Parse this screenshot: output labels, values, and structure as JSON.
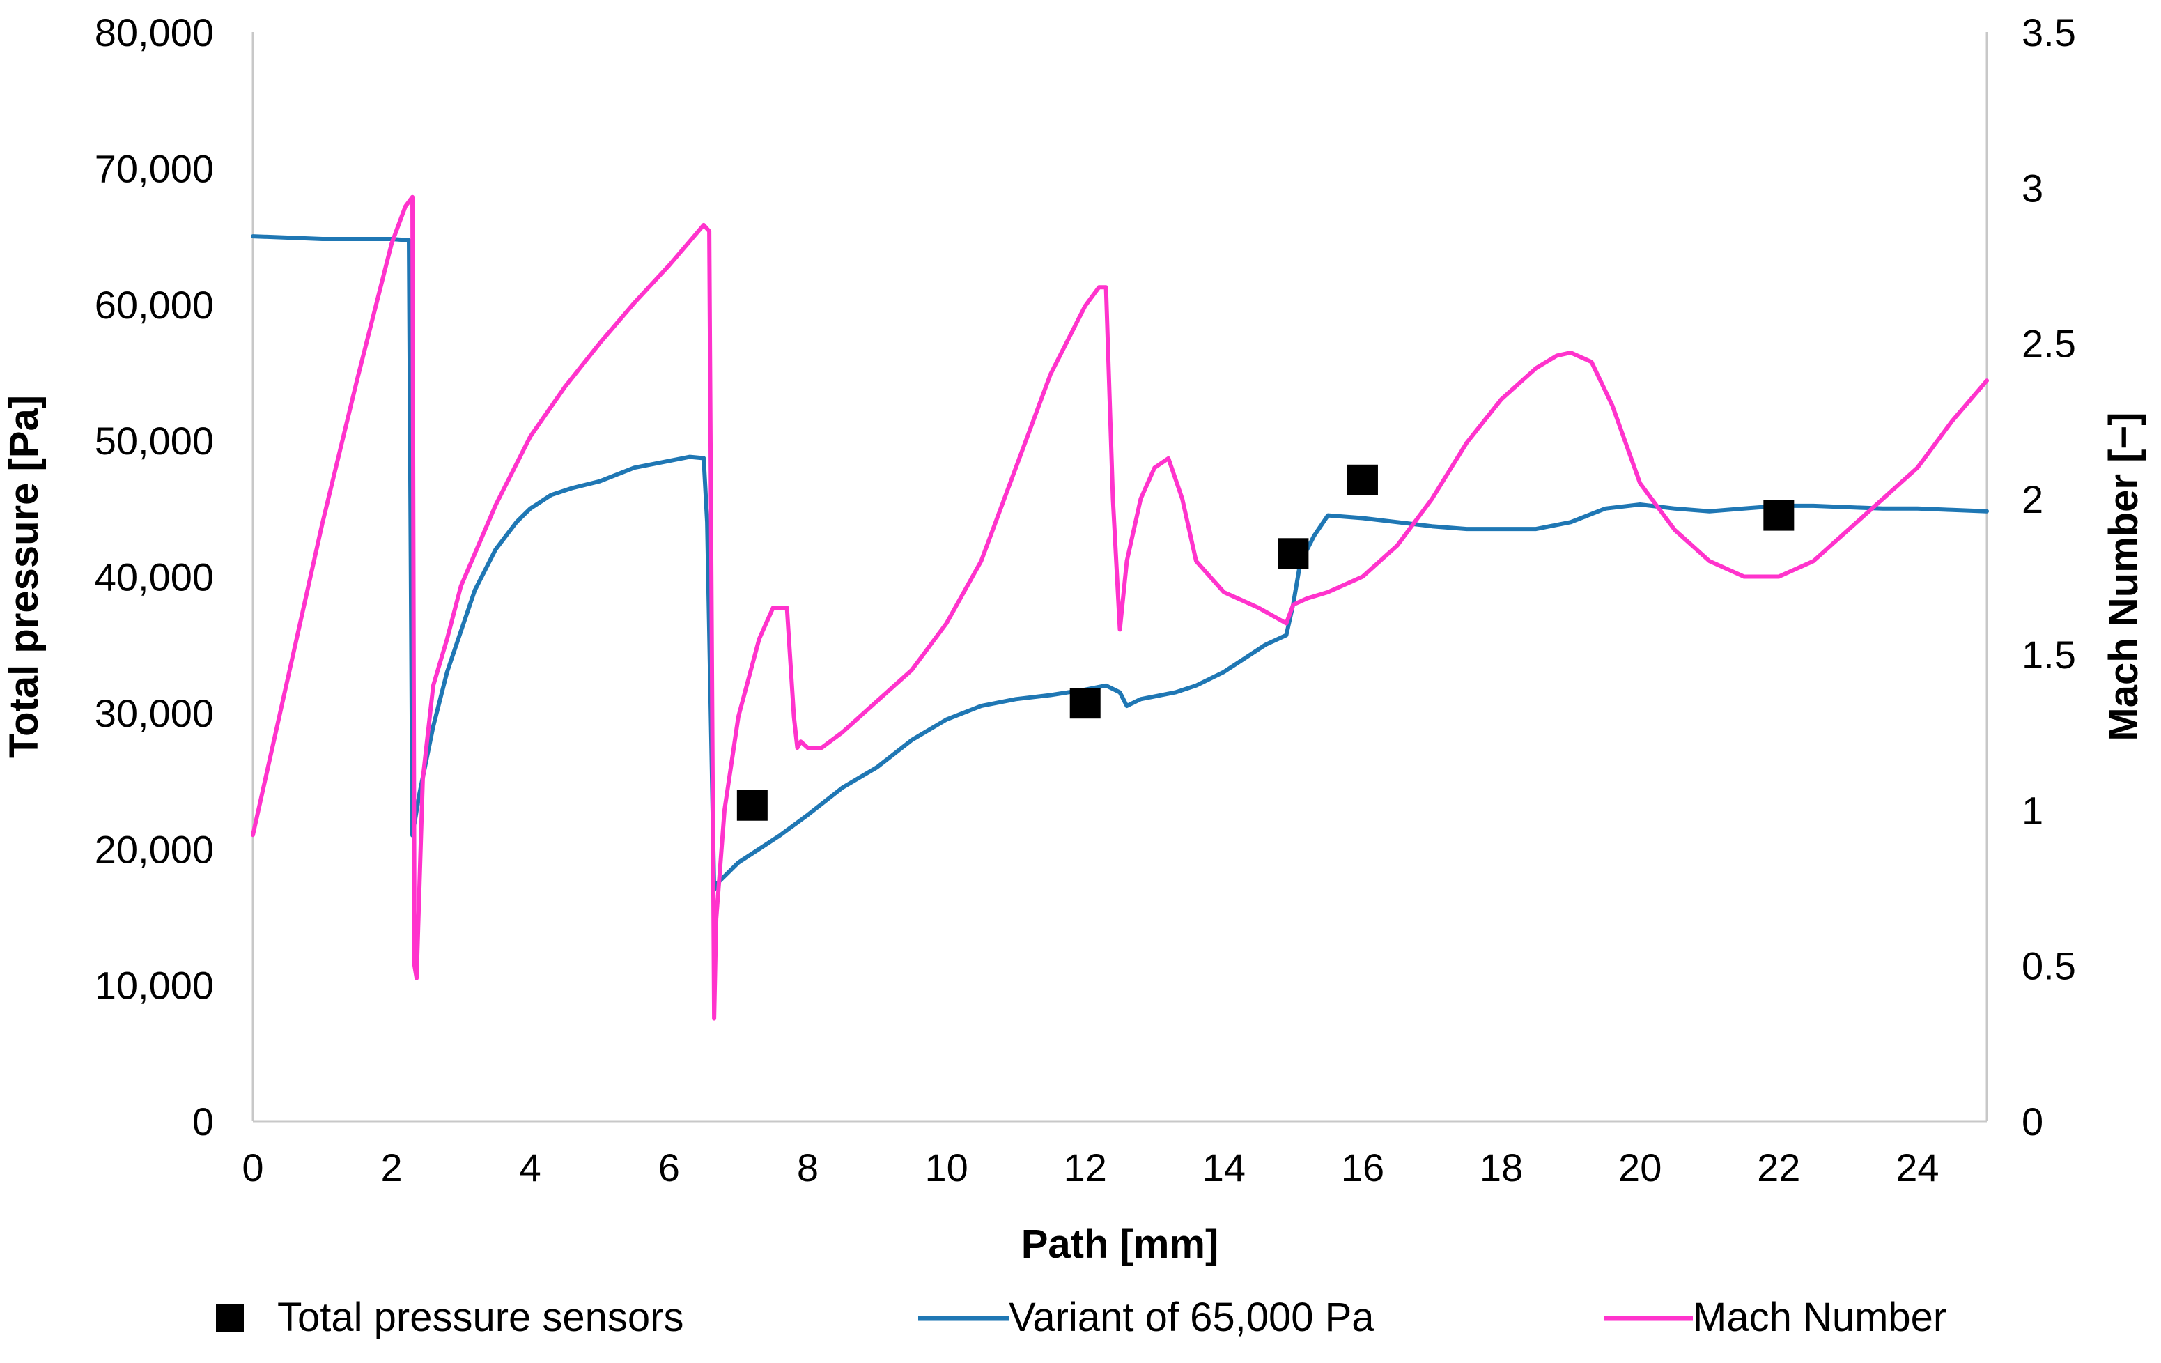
{
  "chart_data": {
    "type": "line",
    "title": "",
    "xlabel": "Path [mm]",
    "ylabel": "Total pressure [Pa]",
    "y2label": "Mach Number [−]",
    "xlim": [
      0,
      25
    ],
    "ylim": [
      0,
      80000
    ],
    "y2lim": [
      0,
      3.5
    ],
    "grid": false,
    "legend_position": "bottom",
    "x_ticks": [
      "0",
      "2",
      "4",
      "6",
      "8",
      "10",
      "12",
      "14",
      "16",
      "18",
      "20",
      "22",
      "24"
    ],
    "y_ticks": [
      "0",
      "10,000",
      "20,000",
      "30,000",
      "40,000",
      "50,000",
      "60,000",
      "70,000",
      "80,000"
    ],
    "y2_ticks": [
      "0",
      "0.5",
      "1",
      "1.5",
      "2",
      "2.5",
      "3",
      "3.5"
    ],
    "series": [
      {
        "name": "Total pressure sensors",
        "kind": "markers",
        "axis": "left",
        "color": "#000000",
        "x": [
          7.2,
          12.0,
          15.0,
          16.0,
          22.0
        ],
        "y": [
          23200,
          30700,
          41700,
          47100,
          44500
        ]
      },
      {
        "name": "Variant of 65,000 Pa",
        "kind": "line",
        "axis": "left",
        "color": "#1f77b4",
        "x": [
          0,
          0.5,
          1.0,
          1.5,
          2.0,
          2.25,
          2.3,
          2.4,
          2.6,
          2.8,
          3.0,
          3.2,
          3.5,
          3.8,
          4.0,
          4.3,
          4.6,
          5.0,
          5.5,
          6.0,
          6.3,
          6.5,
          6.55,
          6.65,
          6.7,
          7.0,
          7.3,
          7.6,
          8.0,
          8.5,
          9.0,
          9.5,
          10.0,
          10.5,
          11.0,
          11.5,
          12.0,
          12.3,
          12.5,
          12.6,
          12.8,
          13.0,
          13.3,
          13.6,
          14.0,
          14.3,
          14.6,
          14.9,
          15.0,
          15.1,
          15.3,
          15.5,
          16.0,
          16.5,
          17.0,
          17.5,
          18.0,
          18.5,
          19.0,
          19.5,
          20.0,
          20.5,
          21.0,
          21.5,
          22.0,
          22.5,
          23.0,
          23.5,
          24.0,
          24.5,
          25.0
        ],
        "y": [
          65000,
          64900,
          64800,
          64800,
          64800,
          64700,
          21000,
          24000,
          29000,
          33000,
          36000,
          39000,
          42000,
          44000,
          45000,
          46000,
          46500,
          47000,
          48000,
          48500,
          48800,
          48700,
          44000,
          17000,
          17500,
          19000,
          20000,
          21000,
          22500,
          24500,
          26000,
          28000,
          29500,
          30500,
          31000,
          31300,
          31700,
          32000,
          31500,
          30500,
          31000,
          31200,
          31500,
          32000,
          33000,
          34000,
          35000,
          35700,
          38000,
          41000,
          43000,
          44500,
          44300,
          44000,
          43700,
          43500,
          43500,
          43500,
          44000,
          45000,
          45300,
          45000,
          44800,
          45000,
          45200,
          45200,
          45100,
          45000,
          45000,
          44900,
          44800
        ]
      },
      {
        "name": "Mach Number",
        "kind": "line",
        "axis": "right",
        "color": "#ff33cc",
        "x": [
          0,
          0.5,
          1.0,
          1.5,
          2.0,
          2.2,
          2.3,
          2.33,
          2.36,
          2.45,
          2.6,
          2.8,
          3.0,
          3.5,
          4.0,
          4.5,
          5.0,
          5.5,
          6.0,
          6.5,
          6.58,
          6.65,
          6.68,
          6.8,
          7.0,
          7.3,
          7.5,
          7.7,
          7.8,
          7.85,
          7.9,
          8.0,
          8.2,
          8.5,
          9.0,
          9.5,
          10.0,
          10.5,
          11.0,
          11.5,
          12.0,
          12.2,
          12.3,
          12.4,
          12.5,
          12.6,
          12.8,
          13.0,
          13.2,
          13.4,
          13.6,
          14.0,
          14.5,
          14.9,
          15.0,
          15.2,
          15.5,
          16.0,
          16.5,
          17.0,
          17.5,
          18.0,
          18.5,
          18.8,
          19.0,
          19.3,
          19.6,
          20.0,
          20.5,
          21.0,
          21.5,
          22.0,
          22.5,
          23.0,
          23.5,
          24.0,
          24.5,
          25.0
        ],
        "y": [
          0.92,
          1.42,
          1.92,
          2.38,
          2.82,
          2.94,
          2.97,
          0.5,
          0.46,
          1.1,
          1.4,
          1.55,
          1.72,
          1.98,
          2.2,
          2.36,
          2.5,
          2.63,
          2.75,
          2.88,
          2.86,
          0.33,
          0.65,
          1.0,
          1.3,
          1.55,
          1.65,
          1.65,
          1.3,
          1.2,
          1.22,
          1.2,
          1.2,
          1.25,
          1.35,
          1.45,
          1.6,
          1.8,
          2.1,
          2.4,
          2.62,
          2.68,
          2.68,
          2.0,
          1.58,
          1.8,
          2.0,
          2.1,
          2.13,
          2.0,
          1.8,
          1.7,
          1.65,
          1.6,
          1.66,
          1.68,
          1.7,
          1.75,
          1.85,
          2.0,
          2.18,
          2.32,
          2.42,
          2.46,
          2.47,
          2.44,
          2.3,
          2.05,
          1.9,
          1.8,
          1.75,
          1.75,
          1.8,
          1.9,
          2.0,
          2.1,
          2.25,
          2.38
        ]
      }
    ]
  }
}
